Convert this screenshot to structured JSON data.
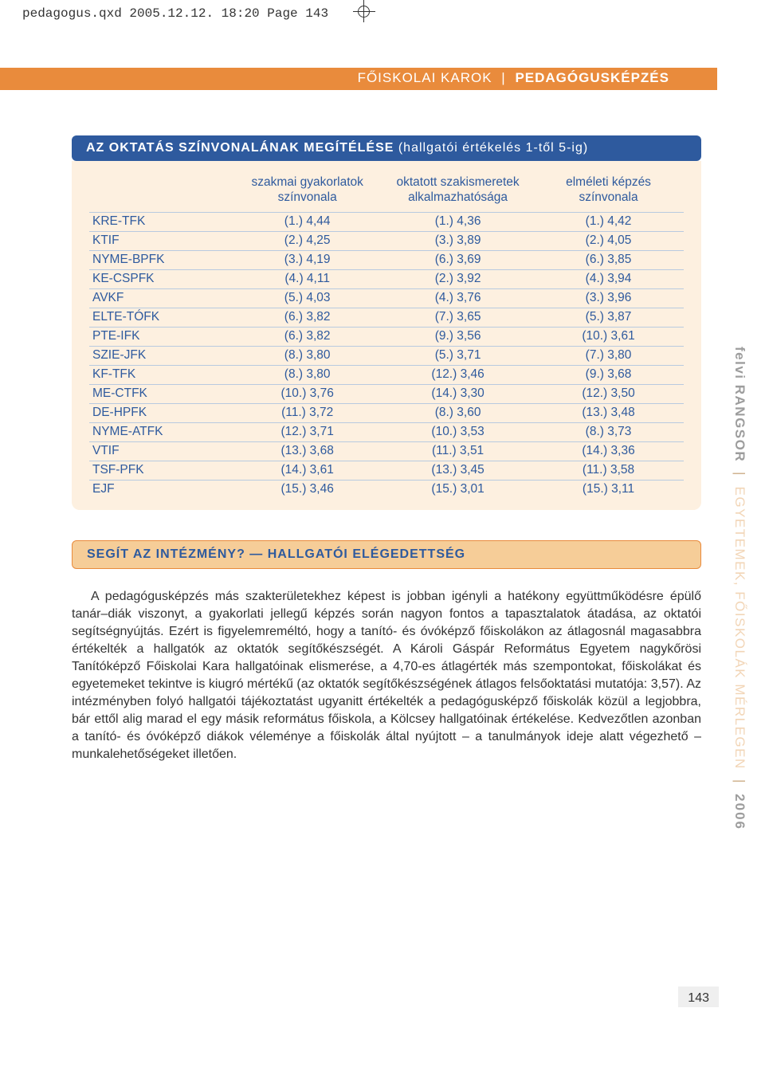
{
  "print_header": "pedagogus.qxd  2005.12.12.  18:20  Page 143",
  "page_header_light": "FŐISKOLAI KAROK",
  "page_header_sep": "|",
  "page_header_bold": "PEDAGÓGUSKÉPZÉS",
  "section1_title_bold": "AZ OKTATÁS SZÍNVONALÁNAK MEGÍTÉLÉSE",
  "section1_title_light": " (hallgatói értékelés 1-től 5-ig)",
  "table": {
    "columns": [
      "",
      "szakmai gyakorlatok\nszínvonala",
      "oktatott szakismeretek\nalkalmazhatósága",
      "elméleti képzés\nszínvonala"
    ],
    "rows": [
      [
        "KRE-TFK",
        "(1.) 4,44",
        "(1.) 4,36",
        "(1.) 4,42"
      ],
      [
        "KTIF",
        "(2.) 4,25",
        "(3.) 3,89",
        "(2.) 4,05"
      ],
      [
        "NYME-BPFK",
        "(3.) 4,19",
        "(6.) 3,69",
        "(6.) 3,85"
      ],
      [
        "KE-CSPFK",
        "(4.) 4,11",
        "(2.) 3,92",
        "(4.) 3,94"
      ],
      [
        "AVKF",
        "(5.) 4,03",
        "(4.) 3,76",
        "(3.) 3,96"
      ],
      [
        "ELTE-TÓFK",
        "(6.) 3,82",
        "(7.) 3,65",
        "(5.) 3,87"
      ],
      [
        "PTE-IFK",
        "(6.) 3,82",
        "(9.) 3,56",
        "(10.) 3,61"
      ],
      [
        "SZIE-JFK",
        "(8.) 3,80",
        "(5.) 3,71",
        "(7.) 3,80"
      ],
      [
        "KF-TFK",
        "(8.) 3,80",
        "(12.) 3,46",
        "(9.) 3,68"
      ],
      [
        "ME-CTFK",
        "(10.) 3,76",
        "(14.) 3,30",
        "(12.) 3,50"
      ],
      [
        "DE-HPFK",
        "(11.) 3,72",
        "(8.) 3,60",
        "(13.) 3,48"
      ],
      [
        "NYME-ATFK",
        "(12.) 3,71",
        "(10.) 3,53",
        "(8.) 3,73"
      ],
      [
        "VTIF",
        "(13.) 3,68",
        "(11.) 3,51",
        "(14.) 3,36"
      ],
      [
        "TSF-PFK",
        "(14.) 3,61",
        "(13.) 3,45",
        "(11.) 3,58"
      ],
      [
        "EJF",
        "(15.) 3,46",
        "(15.) 3,01",
        "(15.) 3,11"
      ]
    ]
  },
  "section2_title": "SEGÍT AZ INTÉZMÉNY? — HALLGATÓI ELÉGEDETTSÉG",
  "body_text": "A pedagógusképzés más szakterületekhez képest is jobban igényli a hatékony együttműködésre épülő tanár–diák viszonyt, a gyakorlati jellegű képzés során nagyon fontos a tapasztalatok átadása, az oktatói segítségnyújtás. Ezért is figyelemreméltó, hogy a tanító- és óvóképző főiskolákon az átlagosnál magasabbra értékelték a hallgatók az oktatók segítőkészségét. A Károli Gáspár Református Egyetem nagykőrösi Tanítóképző Főiskolai Kara hallgatóinak elismerése, a 4,70-es átlagérték más szempontokat, főiskolákat és egyetemeket tekintve is kiugró mértékű (az oktatók segítőkészségének átlagos felsőoktatási mutatója: 3,57). Az intézményben folyó hallgatói tájékoztatást ugyanitt értékelték a pedagógusképző főiskolák közül a legjobbra, bár ettől alig marad el egy másik református főiskola, a Kölcsey hallgatóinak értékelése. Kedvezőtlen azonban a tanító- és óvóképző diákok véleménye a főiskolák által nyújtott – a tanulmányok ideje alatt végezhető – munkalehetőségeket illetően.",
  "side_rangsor": "felvi RANGSOR",
  "side_sep": "|",
  "side_sub": "EGYETEMEK, FŐISKOLÁK MÉRLEGEN",
  "side_year": "2006",
  "page_num": "143",
  "colors": {
    "orange": "#e98b3c",
    "cream": "#fdf0e0",
    "blue": "#2e5a9e",
    "sub_bg": "#f6cd98",
    "row_border": "#b8cae0"
  }
}
